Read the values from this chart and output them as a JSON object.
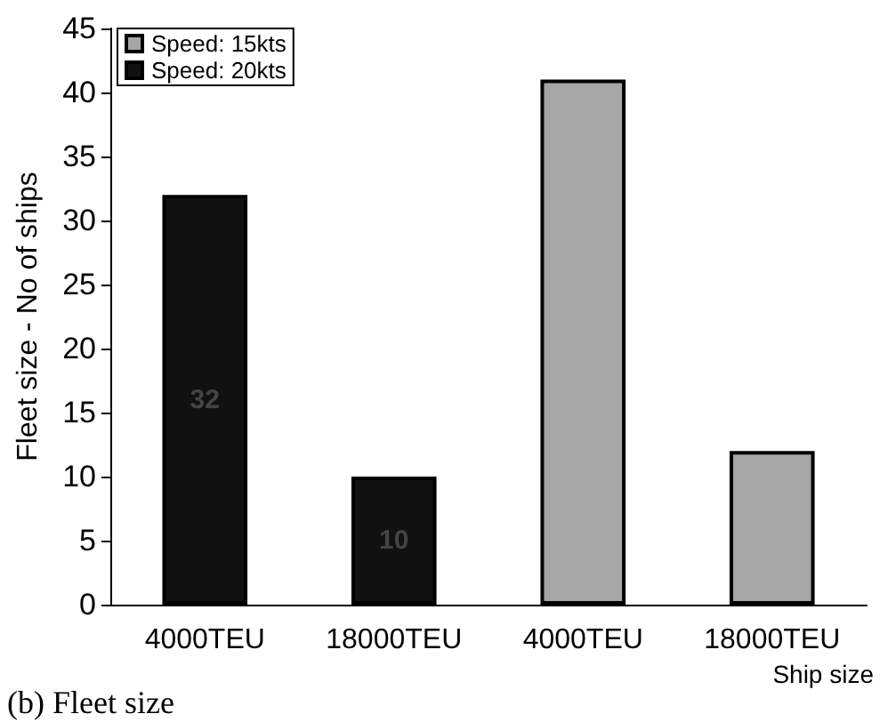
{
  "chart_data": {
    "type": "bar",
    "xlabel": "Ship size",
    "ylabel": "Fleet size - No of ships",
    "categories": [
      "4000TEU",
      "18000TEU",
      "4000TEU",
      "18000TEU"
    ],
    "stacked": true,
    "series": [
      {
        "name": "Speed: 15kts",
        "color": "#a6a6a6",
        "values": [
          null,
          null,
          41,
          12
        ]
      },
      {
        "name": "Speed: 20kts",
        "color": "#111111",
        "values": [
          32,
          10,
          null,
          null
        ],
        "value_labels": [
          "32",
          "10",
          null,
          null
        ]
      }
    ],
    "ylim": [
      0,
      45
    ],
    "yticks": [
      0,
      5,
      10,
      15,
      20,
      25,
      30,
      35,
      40,
      45
    ],
    "grid": false,
    "legend": "top left",
    "annotations": [
      "(b) Fleet size"
    ]
  }
}
